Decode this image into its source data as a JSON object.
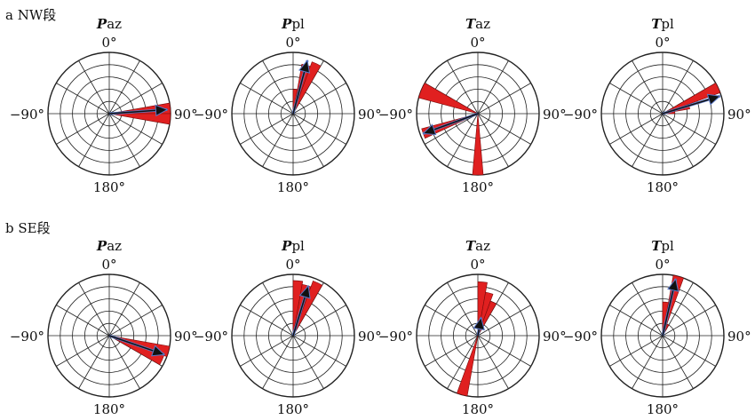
{
  "chart_data": [
    {
      "section": "a NW段",
      "panels": [
        {
          "type": "rose",
          "title_italic": "P",
          "title_rest": "az",
          "tick_labels": {
            "top": "0°",
            "right": "90°",
            "bottom": "180°",
            "left": "−90°"
          },
          "bins": [
            {
              "angle_start": 80,
              "angle_end": 90,
              "value": 1.0
            },
            {
              "angle_start": 90,
              "angle_end": 100,
              "value": 1.0
            }
          ],
          "mean_direction": 86,
          "mean_length": 0.95
        },
        {
          "type": "rose",
          "title_italic": "P",
          "title_rest": "pl",
          "tick_labels": {
            "top": "0°",
            "right": "90°",
            "bottom": "180°",
            "left": "−90°"
          },
          "bins": [
            {
              "angle_start": 0,
              "angle_end": 10,
              "value": 0.4
            },
            {
              "angle_start": 10,
              "angle_end": 20,
              "value": 0.82
            },
            {
              "angle_start": 20,
              "angle_end": 30,
              "value": 0.9
            }
          ],
          "mean_direction": 15,
          "mean_length": 0.9
        },
        {
          "type": "rose",
          "title_italic": "T",
          "title_rest": "az",
          "tick_labels": {
            "top": "0°",
            "right": "90°",
            "bottom": "180°",
            "left": "−90°"
          },
          "bins": [
            {
              "angle_start": -75,
              "angle_end": -60,
              "value": 1.0
            },
            {
              "angle_start": -115,
              "angle_end": -105,
              "value": 0.95
            },
            {
              "angle_start": 175,
              "angle_end": 185,
              "value": 1.0
            }
          ],
          "mean_direction": -110,
          "mean_length": 0.95
        },
        {
          "type": "rose",
          "title_italic": "T",
          "title_rest": "pl",
          "tick_labels": {
            "top": "0°",
            "right": "90°",
            "bottom": "180°",
            "left": "−90°"
          },
          "bins": [
            {
              "angle_start": 60,
              "angle_end": 70,
              "value": 1.0
            },
            {
              "angle_start": 70,
              "angle_end": 80,
              "value": 0.45
            },
            {
              "angle_start": 80,
              "angle_end": 90,
              "value": 0.2
            }
          ],
          "mean_direction": 73,
          "mean_length": 0.98
        }
      ]
    },
    {
      "section": "b SE段",
      "panels": [
        {
          "type": "rose",
          "title_italic": "P",
          "title_rest": "az",
          "tick_labels": {
            "top": "0°",
            "right": "90°",
            "bottom": "180°",
            "left": "−90°"
          },
          "bins": [
            {
              "angle_start": 100,
              "angle_end": 110,
              "value": 1.0
            },
            {
              "angle_start": 110,
              "angle_end": 120,
              "value": 0.95
            }
          ],
          "mean_direction": 109,
          "mean_length": 0.95
        },
        {
          "type": "rose",
          "title_italic": "P",
          "title_rest": "pl",
          "tick_labels": {
            "top": "0°",
            "right": "90°",
            "bottom": "180°",
            "left": "−90°"
          },
          "bins": [
            {
              "angle_start": 0,
              "angle_end": 10,
              "value": 0.9
            },
            {
              "angle_start": 10,
              "angle_end": 20,
              "value": 0.85
            },
            {
              "angle_start": 20,
              "angle_end": 30,
              "value": 0.95
            }
          ],
          "mean_direction": 17,
          "mean_length": 0.85
        },
        {
          "type": "rose",
          "title_italic": "T",
          "title_rest": "az",
          "tick_labels": {
            "top": "0°",
            "right": "90°",
            "bottom": "180°",
            "left": "−90°"
          },
          "bins": [
            {
              "angle_start": 0,
              "angle_end": 10,
              "value": 0.88
            },
            {
              "angle_start": 10,
              "angle_end": 20,
              "value": 0.72
            },
            {
              "angle_start": 20,
              "angle_end": 30,
              "value": 0.6
            },
            {
              "angle_start": 190,
              "angle_end": 200,
              "value": 1.0
            }
          ],
          "mean_direction": 10,
          "mean_length": 0.3
        },
        {
          "type": "rose",
          "title_italic": "T",
          "title_rest": "pl",
          "tick_labels": {
            "top": "0°",
            "right": "90°",
            "bottom": "180°",
            "left": "−90°"
          },
          "bins": [
            {
              "angle_start": 0,
              "angle_end": 10,
              "value": 0.55
            },
            {
              "angle_start": 10,
              "angle_end": 20,
              "value": 1.0
            },
            {
              "angle_start": 20,
              "angle_end": 30,
              "value": 0.2
            }
          ],
          "mean_direction": 13,
          "mean_length": 0.95
        }
      ]
    }
  ],
  "colors": {
    "petal_fill": "#e02020",
    "petal_edge": "#7a0a0a",
    "grid": "#222222",
    "arrow_fill": "#111111",
    "arrow_edge": "#5a78c8"
  }
}
